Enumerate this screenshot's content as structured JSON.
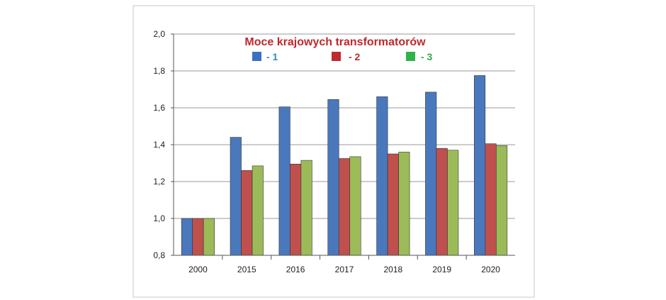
{
  "chart_data": {
    "type": "bar",
    "title": "Moce  krajowych transformatorów",
    "categories": [
      "2000",
      "2015",
      "2016",
      "2017",
      "2018",
      "2019",
      "2020"
    ],
    "series": [
      {
        "name": "- 1",
        "color": "#4a78bd",
        "values": [
          1.0,
          1.44,
          1.605,
          1.645,
          1.66,
          1.685,
          1.775
        ]
      },
      {
        "name": "- 2",
        "color": "#c0504d",
        "values": [
          1.0,
          1.26,
          1.295,
          1.325,
          1.35,
          1.38,
          1.405
        ]
      },
      {
        "name": "- 3",
        "color": "#9bbb59",
        "values": [
          1.0,
          1.285,
          1.315,
          1.335,
          1.36,
          1.37,
          1.395
        ]
      }
    ],
    "ylim": [
      0.8,
      2.0
    ],
    "yticks": [
      "0,8",
      "1,0",
      "1,2",
      "1,4",
      "1,6",
      "1,8",
      "2,0"
    ],
    "ytick_values": [
      0.8,
      1.0,
      1.2,
      1.4,
      1.6,
      1.8,
      2.0
    ],
    "grid": true,
    "legend_position": "top-center",
    "xlabel": "",
    "ylabel": "",
    "colors": {
      "title": "#c0282d",
      "legend_1_text": "#2f8fb0",
      "legend_2_text": "#c0282d",
      "legend_3_text": "#3aa64a",
      "legend_1_marker": "#3b6fc4",
      "legend_2_marker": "#c0282d",
      "legend_3_marker": "#2db34a"
    }
  }
}
